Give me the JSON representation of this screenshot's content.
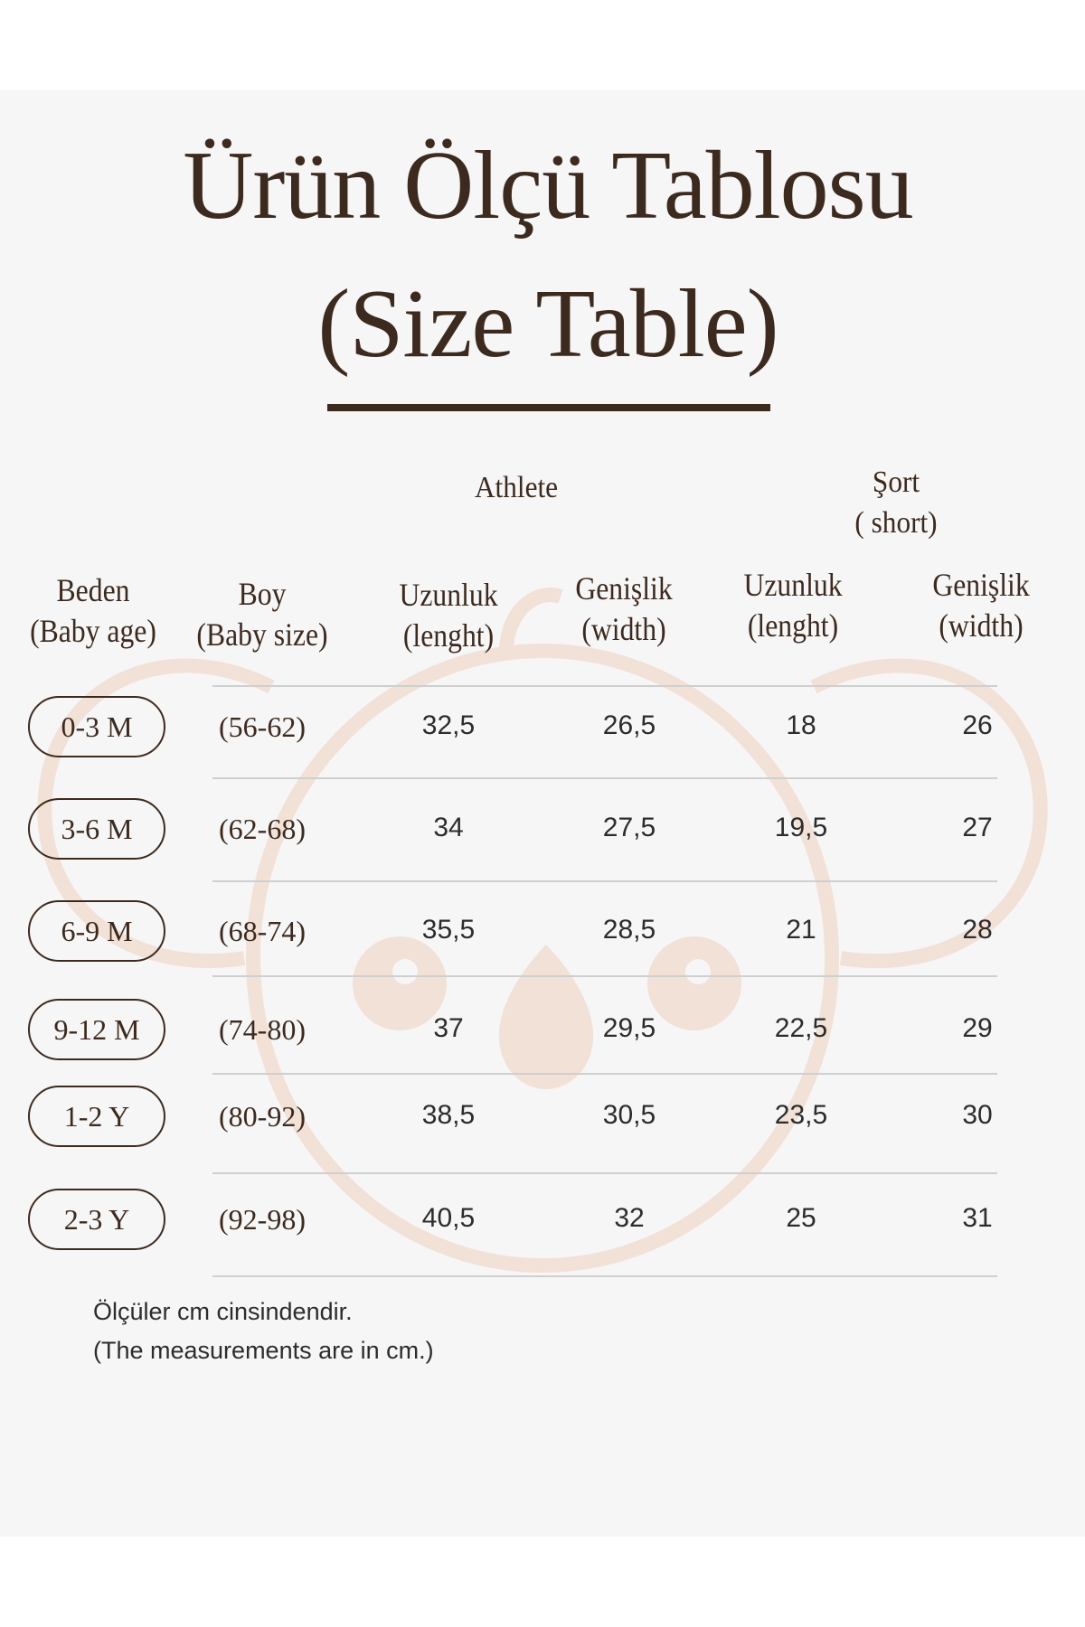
{
  "title": {
    "line1": "Ürün Ölçü Tablosu",
    "line2": "(Size Table)"
  },
  "groups": {
    "athlete": "Athlete",
    "short_line1": "Şort",
    "short_line2": "( short)"
  },
  "headers": [
    {
      "line1": "Beden",
      "line2": "(Baby age)"
    },
    {
      "line1": "Boy",
      "line2": "(Baby size)"
    },
    {
      "line1": "Uzunluk",
      "line2": "(lenght)"
    },
    {
      "line1": "Genişlik",
      "line2": "(width)"
    },
    {
      "line1": "Uzunluk",
      "line2": "(lenght)"
    },
    {
      "line1": "Genişlik",
      "line2": "(width)"
    }
  ],
  "rows": [
    {
      "age": "0-3 M",
      "size": "(56-62)",
      "athlete_length": "32,5",
      "athlete_width": "26,5",
      "short_length": "18",
      "short_width": "26"
    },
    {
      "age": "3-6 M",
      "size": "(62-68)",
      "athlete_length": "34",
      "athlete_width": "27,5",
      "short_length": "19,5",
      "short_width": "27"
    },
    {
      "age": "6-9 M",
      "size": "(68-74)",
      "athlete_length": "35,5",
      "athlete_width": "28,5",
      "short_length": "21",
      "short_width": "28"
    },
    {
      "age": "9-12 M",
      "size": "(74-80)",
      "athlete_length": "37",
      "athlete_width": "29,5",
      "short_length": "22,5",
      "short_width": "29"
    },
    {
      "age": "1-2 Y",
      "size": "(80-92)",
      "athlete_length": "38,5",
      "athlete_width": "30,5",
      "short_length": "23,5",
      "short_width": "30"
    },
    {
      "age": "2-3 Y",
      "size": "(92-98)",
      "athlete_length": "40,5",
      "athlete_width": "32",
      "short_length": "25",
      "short_width": "31"
    }
  ],
  "footer": {
    "line1": "Ölçüler cm cinsindendir.",
    "line2": "(The measurements are in cm.)"
  },
  "colors": {
    "text": "#3d2a1f",
    "background": "#f6f6f6",
    "watermark": "#f2e1d7"
  },
  "watermark_icon": "koala-face-icon"
}
